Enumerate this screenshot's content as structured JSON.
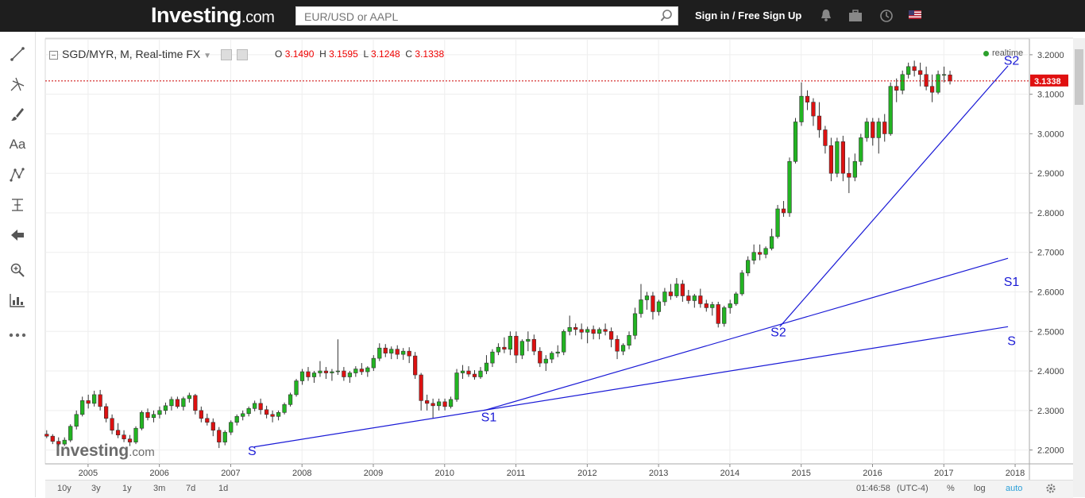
{
  "site": {
    "logo_main": "Investing",
    "logo_suffix": ".com",
    "search_placeholder": "EUR/USD or AAPL",
    "signin_label": "Sign in / Free Sign Up",
    "icons": [
      "bell-icon",
      "briefcase-icon",
      "clock-icon",
      "us-flag-icon"
    ]
  },
  "toolbar_left": {
    "tools": [
      "trendline-icon",
      "pitchfork-icon",
      "brush-icon",
      "text-icon",
      "pattern-icon",
      "measure-icon",
      "back-arrow-icon",
      "zoom-icon",
      "ruler-icon",
      "more-icon"
    ],
    "text_tool_label": "Aa"
  },
  "chart_header": {
    "title": "SGD/MYR, M, Real-time FX",
    "open_label": "O",
    "open": "3.1490",
    "high_label": "H",
    "high": "3.1595",
    "low_label": "L",
    "low": "3.1248",
    "close_label": "C",
    "close": "3.1338",
    "realtime_label": "realtime",
    "watermark_main": "Investing",
    "watermark_suffix": ".com"
  },
  "bottom_bar": {
    "ranges": [
      "10y",
      "3y",
      "1y",
      "3m",
      "7d",
      "1d"
    ],
    "time": "01:46:58",
    "timezone": "(UTC-4)",
    "percent_label": "%",
    "log_label": "log",
    "auto_label": "auto"
  },
  "colors": {
    "up": "#22b422",
    "down": "#dd1111",
    "trendline": "#1a1ad6",
    "price_line": "#cc0000"
  },
  "chart_data": {
    "type": "candlestick",
    "symbol": "SGD/MYR",
    "interval": "M",
    "ylim": [
      2.165,
      3.24
    ],
    "xlim": [
      2004.4,
      2018.2
    ],
    "yticks": [
      "3.2000",
      "3.1000",
      "3.0000",
      "2.9000",
      "2.8000",
      "2.7000",
      "2.6000",
      "2.5000",
      "2.4000",
      "2.3000",
      "2.2000"
    ],
    "xticks": [
      "2005",
      "2006",
      "2007",
      "2008",
      "2009",
      "2010",
      "2011",
      "2012",
      "2013",
      "2014",
      "2015",
      "2016",
      "2017",
      "2018"
    ],
    "last_price": "3.1338",
    "ohlc": [
      [
        2.24,
        2.25,
        2.23,
        2.235
      ],
      [
        2.235,
        2.24,
        2.215,
        2.222
      ],
      [
        2.222,
        2.232,
        2.21,
        2.215
      ],
      [
        2.215,
        2.232,
        2.21,
        2.225
      ],
      [
        2.225,
        2.265,
        2.22,
        2.26
      ],
      [
        2.26,
        2.3,
        2.252,
        2.29
      ],
      [
        2.29,
        2.335,
        2.285,
        2.325
      ],
      [
        2.325,
        2.34,
        2.305,
        2.318
      ],
      [
        2.318,
        2.35,
        2.31,
        2.34
      ],
      [
        2.34,
        2.352,
        2.3,
        2.31
      ],
      [
        2.31,
        2.318,
        2.27,
        2.28
      ],
      [
        2.28,
        2.29,
        2.24,
        2.25
      ],
      [
        2.25,
        2.268,
        2.23,
        2.238
      ],
      [
        2.238,
        2.25,
        2.22,
        2.228
      ],
      [
        2.228,
        2.238,
        2.21,
        2.22
      ],
      [
        2.22,
        2.26,
        2.215,
        2.255
      ],
      [
        2.255,
        2.3,
        2.25,
        2.295
      ],
      [
        2.295,
        2.305,
        2.275,
        2.282
      ],
      [
        2.282,
        2.3,
        2.27,
        2.29
      ],
      [
        2.29,
        2.31,
        2.28,
        2.3
      ],
      [
        2.3,
        2.32,
        2.29,
        2.312
      ],
      [
        2.312,
        2.335,
        2.3,
        2.328
      ],
      [
        2.328,
        2.335,
        2.305,
        2.31
      ],
      [
        2.31,
        2.335,
        2.3,
        2.33
      ],
      [
        2.33,
        2.345,
        2.32,
        2.338
      ],
      [
        2.338,
        2.342,
        2.29,
        2.3
      ],
      [
        2.3,
        2.31,
        2.27,
        2.28
      ],
      [
        2.28,
        2.292,
        2.262,
        2.27
      ],
      [
        2.27,
        2.28,
        2.235,
        2.25
      ],
      [
        2.25,
        2.258,
        2.205,
        2.22
      ],
      [
        2.22,
        2.25,
        2.212,
        2.245
      ],
      [
        2.245,
        2.275,
        2.238,
        2.27
      ],
      [
        2.27,
        2.29,
        2.262,
        2.285
      ],
      [
        2.285,
        2.3,
        2.275,
        2.292
      ],
      [
        2.292,
        2.31,
        2.285,
        2.305
      ],
      [
        2.305,
        2.325,
        2.298,
        2.318
      ],
      [
        2.318,
        2.33,
        2.29,
        2.302
      ],
      [
        2.302,
        2.312,
        2.28,
        2.29
      ],
      [
        2.29,
        2.3,
        2.27,
        2.285
      ],
      [
        2.285,
        2.3,
        2.275,
        2.295
      ],
      [
        2.295,
        2.32,
        2.29,
        2.315
      ],
      [
        2.315,
        2.345,
        2.31,
        2.34
      ],
      [
        2.34,
        2.38,
        2.335,
        2.375
      ],
      [
        2.375,
        2.405,
        2.365,
        2.398
      ],
      [
        2.398,
        2.41,
        2.375,
        2.385
      ],
      [
        2.385,
        2.4,
        2.37,
        2.395
      ],
      [
        2.395,
        2.425,
        2.385,
        2.4
      ],
      [
        2.4,
        2.41,
        2.38,
        2.395
      ],
      [
        2.395,
        2.405,
        2.375,
        2.398
      ],
      [
        2.398,
        2.48,
        2.39,
        2.4
      ],
      [
        2.4,
        2.41,
        2.375,
        2.385
      ],
      [
        2.385,
        2.4,
        2.37,
        2.395
      ],
      [
        2.395,
        2.412,
        2.385,
        2.405
      ],
      [
        2.405,
        2.42,
        2.39,
        2.398
      ],
      [
        2.398,
        2.412,
        2.385,
        2.408
      ],
      [
        2.408,
        2.44,
        2.4,
        2.432
      ],
      [
        2.432,
        2.47,
        2.425,
        2.458
      ],
      [
        2.458,
        2.468,
        2.435,
        2.445
      ],
      [
        2.445,
        2.462,
        2.43,
        2.455
      ],
      [
        2.455,
        2.465,
        2.43,
        2.442
      ],
      [
        2.442,
        2.458,
        2.428,
        2.45
      ],
      [
        2.45,
        2.46,
        2.42,
        2.438
      ],
      [
        2.438,
        2.448,
        2.38,
        2.39
      ],
      [
        2.39,
        2.395,
        2.3,
        2.325
      ],
      [
        2.325,
        2.34,
        2.3,
        2.318
      ],
      [
        2.318,
        2.33,
        2.28,
        2.312
      ],
      [
        2.312,
        2.33,
        2.3,
        2.322
      ],
      [
        2.322,
        2.33,
        2.3,
        2.31
      ],
      [
        2.31,
        2.335,
        2.305,
        2.328
      ],
      [
        2.328,
        2.405,
        2.322,
        2.395
      ],
      [
        2.395,
        2.415,
        2.38,
        2.4
      ],
      [
        2.4,
        2.412,
        2.385,
        2.392
      ],
      [
        2.392,
        2.402,
        2.378,
        2.385
      ],
      [
        2.385,
        2.41,
        2.38,
        2.4
      ],
      [
        2.4,
        2.44,
        2.392,
        2.42
      ],
      [
        2.42,
        2.455,
        2.41,
        2.448
      ],
      [
        2.448,
        2.47,
        2.44,
        2.46
      ],
      [
        2.46,
        2.485,
        2.445,
        2.455
      ],
      [
        2.455,
        2.5,
        2.44,
        2.488
      ],
      [
        2.488,
        2.5,
        2.42,
        2.44
      ],
      [
        2.44,
        2.48,
        2.43,
        2.475
      ],
      [
        2.475,
        2.5,
        2.45,
        2.48
      ],
      [
        2.48,
        2.492,
        2.44,
        2.45
      ],
      [
        2.45,
        2.46,
        2.41,
        2.42
      ],
      [
        2.42,
        2.44,
        2.4,
        2.43
      ],
      [
        2.43,
        2.45,
        2.42,
        2.445
      ],
      [
        2.445,
        2.465,
        2.435,
        2.448
      ],
      [
        2.448,
        2.505,
        2.44,
        2.5
      ],
      [
        2.5,
        2.54,
        2.49,
        2.51
      ],
      [
        2.51,
        2.52,
        2.49,
        2.505
      ],
      [
        2.505,
        2.52,
        2.48,
        2.498
      ],
      [
        2.498,
        2.512,
        2.47,
        2.505
      ],
      [
        2.505,
        2.515,
        2.48,
        2.495
      ],
      [
        2.495,
        2.51,
        2.48,
        2.505
      ],
      [
        2.505,
        2.52,
        2.49,
        2.5
      ],
      [
        2.5,
        2.51,
        2.46,
        2.48
      ],
      [
        2.48,
        2.49,
        2.43,
        2.45
      ],
      [
        2.45,
        2.47,
        2.44,
        2.465
      ],
      [
        2.465,
        2.5,
        2.455,
        2.49
      ],
      [
        2.49,
        2.56,
        2.48,
        2.545
      ],
      [
        2.545,
        2.62,
        2.535,
        2.58
      ],
      [
        2.58,
        2.6,
        2.555,
        2.59
      ],
      [
        2.59,
        2.6,
        2.53,
        2.55
      ],
      [
        2.55,
        2.58,
        2.54,
        2.575
      ],
      [
        2.575,
        2.61,
        2.565,
        2.6
      ],
      [
        2.6,
        2.62,
        2.58,
        2.59
      ],
      [
        2.59,
        2.635,
        2.585,
        2.62
      ],
      [
        2.62,
        2.63,
        2.575,
        2.59
      ],
      [
        2.59,
        2.605,
        2.57,
        2.578
      ],
      [
        2.578,
        2.595,
        2.56,
        2.59
      ],
      [
        2.59,
        2.608,
        2.56,
        2.57
      ],
      [
        2.57,
        2.58,
        2.55,
        2.56
      ],
      [
        2.56,
        2.575,
        2.54,
        2.568
      ],
      [
        2.568,
        2.575,
        2.51,
        2.52
      ],
      [
        2.52,
        2.565,
        2.512,
        2.56
      ],
      [
        2.56,
        2.58,
        2.545,
        2.57
      ],
      [
        2.57,
        2.6,
        2.565,
        2.595
      ],
      [
        2.595,
        2.655,
        2.59,
        2.648
      ],
      [
        2.648,
        2.69,
        2.64,
        2.68
      ],
      [
        2.68,
        2.72,
        2.67,
        2.7
      ],
      [
        2.7,
        2.72,
        2.68,
        2.695
      ],
      [
        2.695,
        2.715,
        2.685,
        2.71
      ],
      [
        2.71,
        2.76,
        2.705,
        2.74
      ],
      [
        2.74,
        2.82,
        2.735,
        2.81
      ],
      [
        2.81,
        2.83,
        2.79,
        2.8
      ],
      [
        2.8,
        2.94,
        2.79,
        2.93
      ],
      [
        2.93,
        3.04,
        2.925,
        3.03
      ],
      [
        3.03,
        3.13,
        3.02,
        3.095
      ],
      [
        3.095,
        3.11,
        3.06,
        3.08
      ],
      [
        3.08,
        3.09,
        3.02,
        3.045
      ],
      [
        3.045,
        3.08,
        2.99,
        3.01
      ],
      [
        3.01,
        3.02,
        2.95,
        2.97
      ],
      [
        2.97,
        2.99,
        2.88,
        2.9
      ],
      [
        2.9,
        2.99,
        2.89,
        2.98
      ],
      [
        2.98,
        2.995,
        2.88,
        2.9
      ],
      [
        2.9,
        2.94,
        2.85,
        2.89
      ],
      [
        2.89,
        2.95,
        2.88,
        2.93
      ],
      [
        2.93,
        3.0,
        2.92,
        2.99
      ],
      [
        2.99,
        3.04,
        2.98,
        3.03
      ],
      [
        3.03,
        3.04,
        2.97,
        2.99
      ],
      [
        2.99,
        3.04,
        2.95,
        3.03
      ],
      [
        3.03,
        3.05,
        2.98,
        3.0
      ],
      [
        3.0,
        3.13,
        2.995,
        3.12
      ],
      [
        3.12,
        3.14,
        3.08,
        3.11
      ],
      [
        3.11,
        3.16,
        3.1,
        3.15
      ],
      [
        3.15,
        3.18,
        3.14,
        3.17
      ],
      [
        3.17,
        3.185,
        3.145,
        3.16
      ],
      [
        3.16,
        3.18,
        3.12,
        3.15
      ],
      [
        3.15,
        3.17,
        3.11,
        3.12
      ],
      [
        3.12,
        3.15,
        3.08,
        3.105
      ],
      [
        3.105,
        3.16,
        3.1,
        3.15
      ],
      [
        3.15,
        3.17,
        3.13,
        3.15
      ],
      [
        3.149,
        3.1595,
        3.1248,
        3.1338
      ]
    ],
    "annotations": [
      {
        "label": "S",
        "x": 2007.3,
        "y": 2.187
      },
      {
        "label": "S",
        "x": 2017.95,
        "y": 2.465
      },
      {
        "label": "S1",
        "x": 2010.62,
        "y": 2.272
      },
      {
        "label": "S1",
        "x": 2017.95,
        "y": 2.615
      },
      {
        "label": "S2",
        "x": 2014.68,
        "y": 2.487
      },
      {
        "label": "S2",
        "x": 2017.95,
        "y": 3.175
      }
    ],
    "trendlines": [
      {
        "label": "S",
        "from": [
          2007.33,
          2.208
        ],
        "to": [
          2017.9,
          2.512
        ]
      },
      {
        "label": "S1",
        "from": [
          2010.55,
          2.3
        ],
        "to": [
          2017.9,
          2.685
        ]
      },
      {
        "label": "S2",
        "from": [
          2014.7,
          2.512
        ],
        "to": [
          2017.9,
          3.172
        ]
      }
    ]
  }
}
